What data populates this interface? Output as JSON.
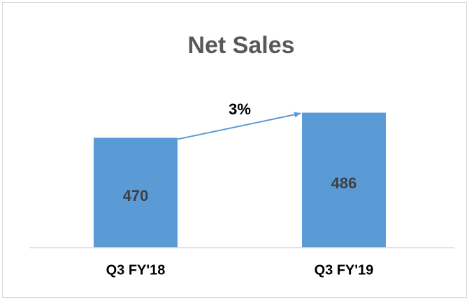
{
  "chart_data": {
    "type": "bar",
    "title": "Net Sales",
    "categories": [
      "Q3 FY'18",
      "Q3 FY'19"
    ],
    "values": [
      470,
      486
    ],
    "color": "#5b9bd5",
    "ylim": [
      400,
      500
    ],
    "annotation": "3%"
  }
}
